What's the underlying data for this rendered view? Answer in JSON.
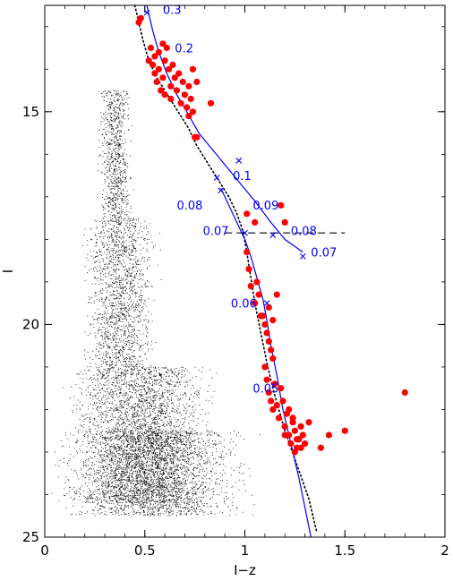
{
  "chart_data": {
    "type": "scatter",
    "xlabel": "I−z",
    "ylabel": "I",
    "xlim": [
      0,
      2
    ],
    "ylim": [
      25,
      12.5
    ],
    "y_inverted": true,
    "grid": false,
    "x_ticks": [
      0,
      0.5,
      1,
      1.5,
      2
    ],
    "y_ticks": [
      15,
      20,
      25
    ],
    "x_tick_labels": [
      "0",
      "0.5",
      "1",
      "1.5",
      "2"
    ],
    "y_tick_labels": [
      "15",
      "20",
      "25"
    ],
    "colors": {
      "field": "#000000",
      "members": "#ff0000",
      "isochrones": "#0000ff",
      "limit_line": "#000000"
    },
    "series": [
      {
        "kind": "field-stars",
        "style": "dots",
        "note_points_approximate": true,
        "regions": [
          {
            "x": [
              0.25,
              0.45
            ],
            "y": [
              14.5,
              17.5
            ],
            "weight": 1
          },
          {
            "x": [
              0.15,
              0.6
            ],
            "y": [
              17.5,
              21.0
            ],
            "weight": 2
          },
          {
            "x": [
              0.05,
              0.9
            ],
            "y": [
              21.0,
              24.2
            ],
            "weight": 4
          },
          {
            "x": [
              0.0,
              1.1
            ],
            "y": [
              22.5,
              24.5
            ],
            "weight": 3
          }
        ]
      },
      {
        "kind": "members",
        "style": "red-filled-circles",
        "x": [
          0.47,
          0.48,
          0.52,
          0.53,
          0.54,
          0.55,
          0.55,
          0.56,
          0.57,
          0.57,
          0.58,
          0.59,
          0.59,
          0.6,
          0.6,
          0.61,
          0.62,
          0.63,
          0.63,
          0.64,
          0.65,
          0.66,
          0.67,
          0.68,
          0.69,
          0.7,
          0.71,
          0.72,
          0.72,
          0.73,
          0.74,
          0.75,
          0.76,
          0.83,
          0.74,
          0.76,
          1.01,
          1.05,
          1.01,
          1.02,
          1.03,
          1.05,
          1.06,
          1.07,
          1.08,
          1.12,
          1.14,
          1.16,
          1.09,
          1.1,
          1.11,
          1.12,
          1.13,
          1.14,
          1.1,
          1.11,
          1.12,
          1.13,
          1.14,
          1.15,
          1.16,
          1.17,
          1.18,
          1.19,
          1.2,
          1.21,
          1.22,
          1.23,
          1.24,
          1.25,
          1.26,
          1.27,
          1.28,
          1.29,
          1.3,
          1.32,
          1.38,
          1.42,
          1.5,
          1.8,
          1.18,
          1.2,
          1.22,
          1.24,
          1.26,
          1.28,
          1.2,
          1.25
        ],
        "y": [
          12.9,
          12.8,
          13.8,
          13.5,
          13.9,
          14.1,
          13.7,
          14.3,
          13.6,
          14.0,
          14.5,
          13.4,
          14.2,
          13.8,
          14.6,
          13.5,
          14.0,
          14.4,
          14.7,
          13.9,
          14.2,
          14.5,
          14.1,
          14.8,
          14.3,
          14.6,
          14.9,
          14.4,
          15.1,
          14.7,
          15.0,
          15.6,
          15.6,
          14.8,
          14.0,
          14.3,
          17.4,
          17.6,
          18.3,
          18.7,
          19.1,
          19.5,
          19.0,
          19.3,
          19.8,
          19.6,
          19.9,
          19.3,
          19.8,
          20.0,
          20.2,
          20.4,
          20.6,
          20.8,
          21.0,
          21.3,
          21.6,
          21.8,
          22.0,
          21.4,
          21.9,
          22.2,
          21.5,
          21.8,
          22.4,
          22.1,
          22.6,
          22.8,
          22.3,
          22.5,
          22.9,
          22.7,
          22.4,
          22.6,
          22.8,
          22.3,
          22.9,
          22.6,
          22.5,
          21.6,
          17.2,
          17.6,
          22.0,
          22.2,
          22.7,
          22.9,
          22.6,
          23.0
        ]
      },
      {
        "kind": "curve",
        "style": "dotted",
        "x": [
          0.45,
          0.47,
          0.49,
          0.52,
          0.56,
          0.6,
          0.64,
          0.68,
          0.72,
          0.76,
          0.8,
          0.84,
          0.88,
          0.92,
          0.96,
          0.99,
          1.01,
          1.03,
          1.05,
          1.08,
          1.11,
          1.14,
          1.17,
          1.2,
          1.23,
          1.26,
          1.29,
          1.32,
          1.34,
          1.36
        ],
        "y": [
          12.5,
          12.9,
          13.3,
          13.8,
          14.2,
          14.5,
          14.8,
          15.1,
          15.4,
          15.8,
          16.1,
          16.4,
          16.7,
          17.0,
          17.4,
          17.8,
          18.3,
          18.9,
          19.5,
          20.2,
          20.9,
          21.5,
          22.0,
          22.5,
          22.9,
          23.3,
          23.7,
          24.1,
          24.5,
          24.9
        ]
      },
      {
        "kind": "curve",
        "style": "solid",
        "x": [
          0.51,
          0.52,
          0.54,
          0.57,
          0.61,
          0.66,
          0.71,
          0.77,
          0.84,
          0.91,
          0.98,
          1.05,
          1.13,
          1.2,
          1.29
        ],
        "y": [
          12.5,
          12.7,
          13.1,
          13.6,
          14.1,
          14.6,
          15.0,
          15.5,
          15.9,
          16.3,
          16.7,
          17.1,
          17.6,
          18.0,
          18.3
        ]
      },
      {
        "kind": "curve",
        "style": "solid",
        "x": [
          0.88,
          0.92,
          0.96,
          1.0,
          1.03,
          1.06,
          1.09,
          1.11,
          1.13,
          1.16,
          1.19,
          1.23,
          1.27,
          1.3,
          1.33
        ],
        "y": [
          16.8,
          17.2,
          17.6,
          18.0,
          18.4,
          18.9,
          19.4,
          19.9,
          20.5,
          21.2,
          22.0,
          22.8,
          23.6,
          24.3,
          25.0
        ]
      },
      {
        "kind": "limit-line",
        "style": "dashed",
        "x": [
          0.9,
          1.5
        ],
        "y": [
          17.85,
          17.85
        ]
      }
    ],
    "markers": [
      {
        "x": 0.51,
        "y": 12.67
      },
      {
        "x": 0.86,
        "y": 16.55
      },
      {
        "x": 0.97,
        "y": 16.15
      },
      {
        "x": 1.14,
        "y": 17.9
      },
      {
        "x": 1.29,
        "y": 18.4
      },
      {
        "x": 0.88,
        "y": 16.85
      },
      {
        "x": 1.0,
        "y": 17.85
      },
      {
        "x": 1.11,
        "y": 19.5
      }
    ],
    "annotations": [
      {
        "text": "0.3",
        "x": 0.59,
        "y": 12.7
      },
      {
        "text": "0.2",
        "x": 0.65,
        "y": 13.6
      },
      {
        "text": "0.1",
        "x": 0.94,
        "y": 16.6
      },
      {
        "text": "0.09",
        "x": 1.04,
        "y": 17.3
      },
      {
        "text": "0.08",
        "x": 1.23,
        "y": 17.9
      },
      {
        "text": "0.07",
        "x": 1.33,
        "y": 18.4
      },
      {
        "text": "0.08",
        "x": 0.66,
        "y": 17.3
      },
      {
        "text": "0.07",
        "x": 0.79,
        "y": 17.9
      },
      {
        "text": "0.06",
        "x": 0.93,
        "y": 19.6
      },
      {
        "text": "0.05",
        "x": 1.04,
        "y": 21.6
      }
    ]
  }
}
